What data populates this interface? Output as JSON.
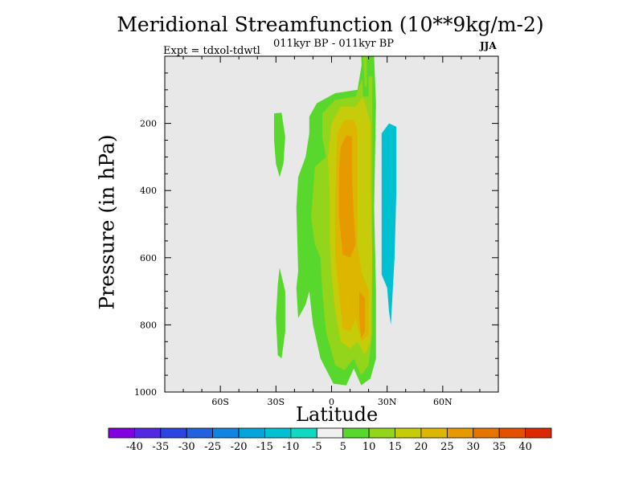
{
  "chart_data": {
    "type": "filled-contour",
    "title": "Meridional Streamfunction (10**9kg/m-2)",
    "subtitle": "011kyr BP - 011kyr BP",
    "left_label": "Expt = tdxol-tdwtl",
    "right_label": "JJA",
    "xlabel": "Latitude",
    "ylabel": "Pressure (in hPa)",
    "xlim": [
      -90,
      90
    ],
    "ylim": [
      1000,
      0
    ],
    "x_ticks": [
      {
        "value": -60,
        "label": "60S"
      },
      {
        "value": -30,
        "label": "30S"
      },
      {
        "value": 0,
        "label": "0"
      },
      {
        "value": 30,
        "label": "30N"
      },
      {
        "value": 60,
        "label": "60N"
      }
    ],
    "y_ticks": [
      {
        "value": 200,
        "label": "200"
      },
      {
        "value": 400,
        "label": "400"
      },
      {
        "value": 600,
        "label": "600"
      },
      {
        "value": 800,
        "label": "800"
      },
      {
        "value": 1000,
        "label": "1000"
      }
    ],
    "contour_levels": [
      -40,
      -35,
      -30,
      -25,
      -20,
      -15,
      -10,
      -5,
      5,
      10,
      15,
      20,
      25,
      30,
      35,
      40
    ],
    "colorbar_colors": [
      "#8000e0",
      "#5228e0",
      "#2c45e0",
      "#2163df",
      "#0f84e2",
      "#05a5dc",
      "#00c1d2",
      "#0fd9c2",
      "#f0f0f0",
      "#58d82d",
      "#92d51a",
      "#c6cb0a",
      "#dcb600",
      "#e69a00",
      "#e67500",
      "#e35100",
      "#dc2800"
    ],
    "regions": [
      {
        "name": "shallow-positive-left",
        "level": 5,
        "poly": [
          [
            -31,
            170
          ],
          [
            -27,
            168
          ],
          [
            -25,
            240
          ],
          [
            -26,
            320
          ],
          [
            -28,
            360
          ],
          [
            -30,
            320
          ],
          [
            -31,
            250
          ]
        ]
      },
      {
        "name": "lower-positive-left",
        "level": 5,
        "poly": [
          [
            -28,
            630
          ],
          [
            -25,
            700
          ],
          [
            -25,
            820
          ],
          [
            -27,
            900
          ],
          [
            -29,
            890
          ],
          [
            -30,
            780
          ],
          [
            -29,
            680
          ]
        ]
      },
      {
        "name": "main-positive-5",
        "level": 5,
        "poly": [
          [
            -12,
            180
          ],
          [
            -8,
            140
          ],
          [
            2,
            110
          ],
          [
            14,
            100
          ],
          [
            17,
            0
          ],
          [
            23,
            0
          ],
          [
            24,
            140
          ],
          [
            23,
            450
          ],
          [
            24,
            700
          ],
          [
            24,
            900
          ],
          [
            21,
            960
          ],
          [
            16,
            980
          ],
          [
            12,
            930
          ],
          [
            8,
            980
          ],
          [
            1,
            975
          ],
          [
            -6,
            900
          ],
          [
            -10,
            800
          ],
          [
            -12,
            700
          ],
          [
            -14,
            740
          ],
          [
            -18,
            780
          ],
          [
            -19,
            690
          ],
          [
            -18,
            640
          ],
          [
            -19,
            450
          ],
          [
            -18,
            360
          ],
          [
            -14,
            300
          ],
          [
            -12,
            230
          ]
        ]
      },
      {
        "name": "main-positive-10",
        "level": 10,
        "poly": [
          [
            -5,
            170
          ],
          [
            2,
            130
          ],
          [
            13,
            120
          ],
          [
            17,
            60
          ],
          [
            22,
            60
          ],
          [
            22,
            300
          ],
          [
            22,
            600
          ],
          [
            22,
            820
          ],
          [
            20,
            920
          ],
          [
            16,
            950
          ],
          [
            12,
            900
          ],
          [
            7,
            935
          ],
          [
            2,
            920
          ],
          [
            -3,
            820
          ],
          [
            -5,
            700
          ],
          [
            -6,
            600
          ],
          [
            -9,
            560
          ],
          [
            -11,
            480
          ],
          [
            -9,
            330
          ],
          [
            -3,
            300
          ],
          [
            -5,
            240
          ]
        ]
      },
      {
        "name": "main-positive-15",
        "level": 15,
        "poly": [
          [
            0,
            200
          ],
          [
            5,
            150
          ],
          [
            13,
            150
          ],
          [
            17,
            120
          ],
          [
            21,
            200
          ],
          [
            21,
            400
          ],
          [
            22,
            600
          ],
          [
            21,
            850
          ],
          [
            18,
            890
          ],
          [
            14,
            850
          ],
          [
            10,
            870
          ],
          [
            5,
            850
          ],
          [
            2,
            760
          ],
          [
            0,
            650
          ],
          [
            -1,
            560
          ],
          [
            -1,
            420
          ],
          [
            -2,
            300
          ]
        ]
      },
      {
        "name": "main-positive-20",
        "level": 20,
        "poly": [
          [
            3,
            230
          ],
          [
            7,
            190
          ],
          [
            12,
            190
          ],
          [
            14,
            220
          ],
          [
            14,
            400
          ],
          [
            14,
            560
          ],
          [
            16,
            640
          ],
          [
            20,
            700
          ],
          [
            20,
            830
          ],
          [
            16,
            850
          ],
          [
            13,
            780
          ],
          [
            10,
            820
          ],
          [
            6,
            810
          ],
          [
            4,
            700
          ],
          [
            2,
            600
          ],
          [
            2,
            450
          ]
        ]
      },
      {
        "name": "main-positive-25",
        "level": 25,
        "poly": [
          [
            5,
            270
          ],
          [
            8,
            235
          ],
          [
            11,
            240
          ],
          [
            11,
            350
          ],
          [
            12,
            480
          ],
          [
            13,
            560
          ],
          [
            10,
            600
          ],
          [
            6,
            590
          ],
          [
            4,
            470
          ],
          [
            4,
            340
          ]
        ]
      },
      {
        "name": "lower-positive-25",
        "level": 25,
        "poly": [
          [
            15,
            700
          ],
          [
            18,
            720
          ],
          [
            18,
            820
          ],
          [
            16,
            840
          ],
          [
            15,
            780
          ]
        ]
      },
      {
        "name": "northern-column-5",
        "level": 5,
        "poly": [
          [
            16,
            0
          ],
          [
            20,
            0
          ],
          [
            20,
            120
          ],
          [
            17,
            120
          ]
        ]
      },
      {
        "name": "northern-column-10",
        "level": 10,
        "poly": [
          [
            17,
            0
          ],
          [
            19,
            0
          ],
          [
            19,
            90
          ],
          [
            18,
            90
          ]
        ]
      },
      {
        "name": "negative-column",
        "level": -10,
        "poly": [
          [
            27,
            230
          ],
          [
            31,
            200
          ],
          [
            35,
            210
          ],
          [
            35,
            400
          ],
          [
            34,
            600
          ],
          [
            33,
            700
          ],
          [
            32,
            800
          ],
          [
            31,
            760
          ],
          [
            30,
            690
          ],
          [
            27,
            650
          ],
          [
            27,
            450
          ]
        ]
      }
    ]
  }
}
